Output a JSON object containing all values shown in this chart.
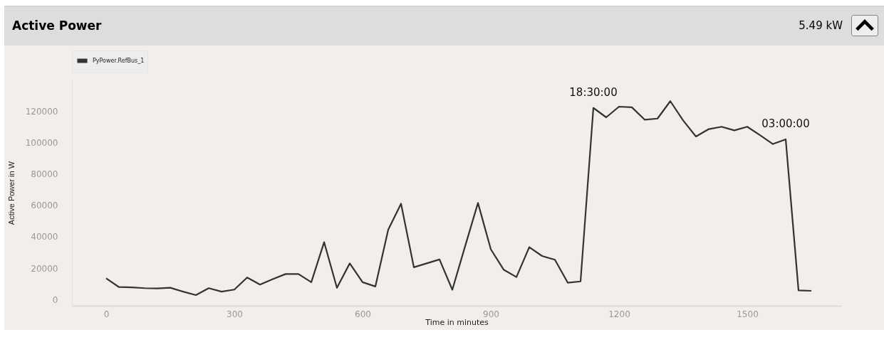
{
  "chart_data": {
    "type": "line",
    "title": "Active Power",
    "xlabel": "Time in minutes",
    "ylabel": "Active Power in W",
    "annotations": [
      "5.49 kW",
      {
        "text": "18:30:00",
        "x": 1140,
        "y": 122000
      },
      {
        "text": "03:00:00",
        "x": 1590,
        "y": 102000
      }
    ],
    "x": [
      0,
      30,
      60,
      90,
      120,
      150,
      180,
      210,
      240,
      270,
      300,
      330,
      360,
      390,
      420,
      450,
      480,
      510,
      540,
      570,
      600,
      630,
      660,
      690,
      720,
      750,
      780,
      810,
      840,
      870,
      900,
      930,
      960,
      990,
      1020,
      1050,
      1080,
      1110,
      1140,
      1170,
      1200,
      1230,
      1260,
      1290,
      1320,
      1350,
      1380,
      1410,
      1440,
      1470,
      1500,
      1530,
      1560,
      1590,
      1620,
      1650
    ],
    "series": [
      {
        "name": "PyPower.RefBus_1",
        "color": "#333333",
        "values": [
          13500,
          7900,
          7700,
          7200,
          7000,
          7500,
          5000,
          2800,
          7200,
          5000,
          6300,
          14000,
          9500,
          13000,
          16200,
          16200,
          11000,
          36500,
          7400,
          23000,
          11000,
          8300,
          44500,
          61000,
          20500,
          23000,
          25500,
          6200,
          34000,
          61500,
          32000,
          19000,
          14300,
          33300,
          27700,
          25300,
          10700,
          11500,
          122000,
          116000,
          122800,
          122400,
          114500,
          115200,
          126300,
          114000,
          103800,
          108500,
          110000,
          107700,
          110000,
          104600,
          99000,
          102000,
          5800,
          5500
        ]
      }
    ],
    "xlim": [
      -80,
      1720
    ],
    "xticks": [
      0,
      300,
      600,
      900,
      1200,
      1500
    ],
    "ylim": [
      -4000,
      140000
    ],
    "yticks": [
      0,
      20000,
      40000,
      60000,
      80000,
      100000,
      120000
    ],
    "grid": false,
    "legend": "top",
    "marker": "none",
    "line_style": "solid"
  }
}
